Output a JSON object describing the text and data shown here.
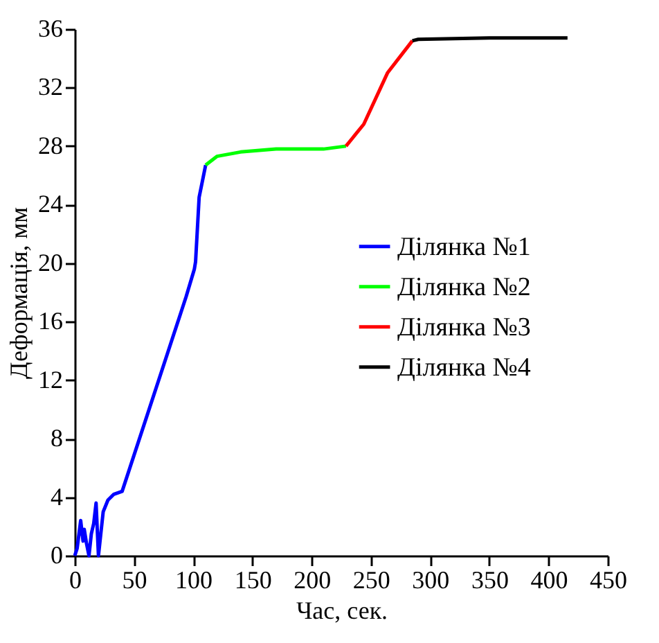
{
  "chart_data": {
    "type": "line",
    "xlabel": "Час, сек.",
    "ylabel": "Деформація, мм",
    "xlim": [
      0,
      450
    ],
    "ylim": [
      0,
      36
    ],
    "xticks": [
      0,
      50,
      100,
      150,
      200,
      250,
      300,
      350,
      400,
      450
    ],
    "yticks": [
      0,
      4,
      8,
      12,
      16,
      20,
      24,
      28,
      32,
      36
    ],
    "grid": false,
    "legend": "right",
    "marker": "none",
    "line_style": "solid",
    "series": [
      {
        "name": "Ділянка №1",
        "color": "#0000ff",
        "x": [
          0,
          2,
          5,
          7,
          8,
          10,
          12,
          14,
          16,
          18,
          20,
          22,
          24,
          28,
          33,
          40,
          94,
          101,
          102,
          105,
          110.5
        ],
        "values": [
          0,
          0.5,
          2.4,
          1,
          1.8,
          0.8,
          0,
          1.5,
          2.2,
          3.6,
          0,
          1.5,
          3,
          3.8,
          4.2,
          4.4,
          17.7,
          19.6,
          20.1,
          24.5,
          26.7
        ]
      },
      {
        "name": "Ділянка №2",
        "color": "#00ff00",
        "x": [
          110.5,
          120,
          140,
          170,
          200,
          210,
          229
        ],
        "values": [
          26.7,
          27.3,
          27.6,
          27.8,
          27.8,
          27.8,
          28
        ]
      },
      {
        "name": "Ділянка №3",
        "color": "#ff0000",
        "x": [
          229,
          244,
          264,
          285
        ],
        "values": [
          28,
          29.5,
          33,
          35.2
        ]
      },
      {
        "name": "Ділянка №4",
        "color": "#000000",
        "x": [
          285,
          290,
          350,
          416
        ],
        "values": [
          35.2,
          35.3,
          35.4,
          35.4
        ]
      }
    ]
  }
}
